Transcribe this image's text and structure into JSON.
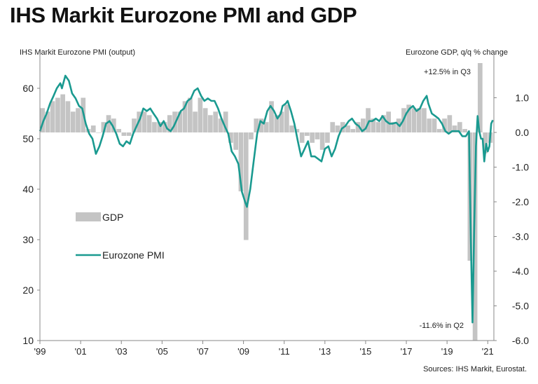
{
  "page": {
    "title": "IHS Markit Eurozone PMI and GDP",
    "source": "Sources: IHS Markit, Eurostat."
  },
  "chart_data": {
    "type": "bar+line",
    "title": "IHS Markit Eurozone PMI and GDP",
    "left_axis_label": "IHS Markit Eurozone PMI (output)",
    "right_axis_label": "Eurozone GDP, q/q % change",
    "left_ylim": [
      10,
      65
    ],
    "left_ticks": [
      "10",
      "20",
      "30",
      "40",
      "50",
      "60"
    ],
    "right_ylim": [
      -6.0,
      2.0
    ],
    "right_ticks": [
      "-6.0",
      "-5.0",
      "-4.0",
      "-3.0",
      "-2.0",
      "-1.0",
      "0.0",
      "1.0"
    ],
    "x_range": [
      1999.0,
      2021.3
    ],
    "x_ticks": [
      "'99",
      "'01",
      "'03",
      "'05",
      "'07",
      "'09",
      "'11",
      "'13",
      "'15",
      "'17",
      "'19",
      "'21"
    ],
    "grid": false,
    "legend_position": "left-middle",
    "colors": {
      "gdp": "#c4c4c4",
      "pmi": "#1a9a90",
      "axis": "#888888",
      "text": "#222222"
    },
    "annotations": {
      "q3_2020": "+12.5% in Q3",
      "q2_2020": "-11.6% in Q2"
    },
    "series": [
      {
        "name": "GDP",
        "type": "bar",
        "axis": "right",
        "values": [
          [
            1999.0,
            0.7
          ],
          [
            1999.25,
            0.6
          ],
          [
            1999.5,
            0.9
          ],
          [
            1999.75,
            1.0
          ],
          [
            2000.0,
            1.1
          ],
          [
            2000.25,
            0.9
          ],
          [
            2000.5,
            0.6
          ],
          [
            2000.75,
            0.7
          ],
          [
            2001.0,
            1.0
          ],
          [
            2001.25,
            0.1
          ],
          [
            2001.5,
            0.2
          ],
          [
            2001.75,
            0.0
          ],
          [
            2002.0,
            0.3
          ],
          [
            2002.25,
            0.5
          ],
          [
            2002.5,
            0.4
          ],
          [
            2002.75,
            0.1
          ],
          [
            2003.0,
            -0.1
          ],
          [
            2003.25,
            -0.1
          ],
          [
            2003.5,
            0.4
          ],
          [
            2003.75,
            0.6
          ],
          [
            2004.0,
            0.6
          ],
          [
            2004.25,
            0.5
          ],
          [
            2004.5,
            0.3
          ],
          [
            2004.75,
            0.3
          ],
          [
            2005.0,
            0.3
          ],
          [
            2005.25,
            0.5
          ],
          [
            2005.5,
            0.6
          ],
          [
            2005.75,
            0.6
          ],
          [
            2006.0,
            0.9
          ],
          [
            2006.25,
            1.0
          ],
          [
            2006.5,
            0.6
          ],
          [
            2006.75,
            1.0
          ],
          [
            2007.0,
            0.7
          ],
          [
            2007.25,
            0.5
          ],
          [
            2007.5,
            0.6
          ],
          [
            2007.75,
            0.4
          ],
          [
            2008.0,
            0.6
          ],
          [
            2008.25,
            -0.3
          ],
          [
            2008.5,
            -0.5
          ],
          [
            2008.75,
            -1.7
          ],
          [
            2009.0,
            -3.1
          ],
          [
            2009.25,
            -0.2
          ],
          [
            2009.5,
            0.4
          ],
          [
            2009.75,
            0.4
          ],
          [
            2010.0,
            0.3
          ],
          [
            2010.25,
            0.9
          ],
          [
            2010.5,
            0.5
          ],
          [
            2010.75,
            0.6
          ],
          [
            2011.0,
            0.8
          ],
          [
            2011.25,
            0.2
          ],
          [
            2011.5,
            0.1
          ],
          [
            2011.75,
            -0.3
          ],
          [
            2012.0,
            -0.1
          ],
          [
            2012.25,
            -0.3
          ],
          [
            2012.5,
            -0.2
          ],
          [
            2012.75,
            -0.5
          ],
          [
            2013.0,
            -0.3
          ],
          [
            2013.25,
            0.3
          ],
          [
            2013.5,
            0.2
          ],
          [
            2013.75,
            0.3
          ],
          [
            2014.0,
            0.2
          ],
          [
            2014.25,
            0.1
          ],
          [
            2014.5,
            0.3
          ],
          [
            2014.75,
            0.4
          ],
          [
            2015.0,
            0.7
          ],
          [
            2015.25,
            0.4
          ],
          [
            2015.5,
            0.3
          ],
          [
            2015.75,
            0.5
          ],
          [
            2016.0,
            0.6
          ],
          [
            2016.25,
            0.3
          ],
          [
            2016.5,
            0.4
          ],
          [
            2016.75,
            0.7
          ],
          [
            2017.0,
            0.8
          ],
          [
            2017.25,
            0.7
          ],
          [
            2017.5,
            0.7
          ],
          [
            2017.75,
            0.7
          ],
          [
            2018.0,
            0.4
          ],
          [
            2018.25,
            0.4
          ],
          [
            2018.5,
            0.1
          ],
          [
            2018.75,
            0.4
          ],
          [
            2019.0,
            0.5
          ],
          [
            2019.25,
            0.2
          ],
          [
            2019.5,
            0.3
          ],
          [
            2019.75,
            0.1
          ],
          [
            2020.0,
            -3.7
          ],
          [
            2020.25,
            -11.6
          ],
          [
            2020.5,
            12.5
          ],
          [
            2020.75,
            -0.6
          ],
          [
            2021.0,
            -0.3
          ]
        ]
      },
      {
        "name": "Eurozone PMI",
        "type": "line",
        "axis": "left",
        "values": [
          [
            1999.0,
            51.5
          ],
          [
            1999.17,
            53.5
          ],
          [
            1999.33,
            55.0
          ],
          [
            1999.5,
            57.0
          ],
          [
            1999.67,
            58.5
          ],
          [
            1999.83,
            60.0
          ],
          [
            2000.0,
            61.0
          ],
          [
            2000.08,
            60.0
          ],
          [
            2000.25,
            62.5
          ],
          [
            2000.42,
            61.5
          ],
          [
            2000.58,
            59.0
          ],
          [
            2000.75,
            58.0
          ],
          [
            2000.92,
            56.5
          ],
          [
            2001.08,
            56.0
          ],
          [
            2001.25,
            53.0
          ],
          [
            2001.42,
            51.0
          ],
          [
            2001.58,
            50.0
          ],
          [
            2001.75,
            47.0
          ],
          [
            2001.92,
            48.5
          ],
          [
            2002.08,
            50.5
          ],
          [
            2002.25,
            53.0
          ],
          [
            2002.42,
            53.5
          ],
          [
            2002.58,
            52.5
          ],
          [
            2002.75,
            51.0
          ],
          [
            2002.92,
            49.0
          ],
          [
            2003.08,
            48.5
          ],
          [
            2003.25,
            49.5
          ],
          [
            2003.42,
            49.0
          ],
          [
            2003.58,
            51.0
          ],
          [
            2003.75,
            52.5
          ],
          [
            2003.92,
            54.0
          ],
          [
            2004.08,
            56.0
          ],
          [
            2004.25,
            55.5
          ],
          [
            2004.42,
            56.0
          ],
          [
            2004.58,
            55.0
          ],
          [
            2004.75,
            54.0
          ],
          [
            2004.92,
            52.5
          ],
          [
            2005.08,
            53.5
          ],
          [
            2005.25,
            52.0
          ],
          [
            2005.42,
            51.5
          ],
          [
            2005.58,
            52.5
          ],
          [
            2005.75,
            54.0
          ],
          [
            2005.92,
            55.5
          ],
          [
            2006.08,
            56.0
          ],
          [
            2006.25,
            57.5
          ],
          [
            2006.42,
            58.0
          ],
          [
            2006.58,
            59.5
          ],
          [
            2006.75,
            60.0
          ],
          [
            2006.92,
            58.5
          ],
          [
            2007.08,
            57.5
          ],
          [
            2007.25,
            58.0
          ],
          [
            2007.42,
            57.5
          ],
          [
            2007.58,
            57.5
          ],
          [
            2007.75,
            56.0
          ],
          [
            2007.92,
            54.0
          ],
          [
            2008.08,
            52.5
          ],
          [
            2008.25,
            51.0
          ],
          [
            2008.42,
            47.5
          ],
          [
            2008.58,
            46.5
          ],
          [
            2008.75,
            45.0
          ],
          [
            2008.92,
            39.5
          ],
          [
            2009.08,
            37.5
          ],
          [
            2009.17,
            36.5
          ],
          [
            2009.33,
            40.0
          ],
          [
            2009.5,
            45.5
          ],
          [
            2009.67,
            51.0
          ],
          [
            2009.83,
            53.5
          ],
          [
            2010.0,
            53.0
          ],
          [
            2010.17,
            55.5
          ],
          [
            2010.33,
            56.5
          ],
          [
            2010.5,
            55.5
          ],
          [
            2010.67,
            54.0
          ],
          [
            2010.83,
            55.0
          ],
          [
            2010.92,
            56.5
          ],
          [
            2011.08,
            57.0
          ],
          [
            2011.17,
            57.5
          ],
          [
            2011.33,
            55.5
          ],
          [
            2011.5,
            53.0
          ],
          [
            2011.67,
            49.5
          ],
          [
            2011.83,
            46.5
          ],
          [
            2012.0,
            48.0
          ],
          [
            2012.17,
            49.5
          ],
          [
            2012.33,
            46.5
          ],
          [
            2012.5,
            46.5
          ],
          [
            2012.67,
            46.0
          ],
          [
            2012.83,
            45.5
          ],
          [
            2013.0,
            48.0
          ],
          [
            2013.17,
            48.5
          ],
          [
            2013.33,
            46.5
          ],
          [
            2013.5,
            48.0
          ],
          [
            2013.67,
            50.5
          ],
          [
            2013.83,
            52.0
          ],
          [
            2014.0,
            52.5
          ],
          [
            2014.17,
            53.5
          ],
          [
            2014.33,
            54.0
          ],
          [
            2014.5,
            53.0
          ],
          [
            2014.67,
            52.5
          ],
          [
            2014.83,
            51.5
          ],
          [
            2015.0,
            52.0
          ],
          [
            2015.17,
            53.5
          ],
          [
            2015.33,
            53.5
          ],
          [
            2015.5,
            54.0
          ],
          [
            2015.67,
            53.5
          ],
          [
            2015.83,
            54.5
          ],
          [
            2016.0,
            53.5
          ],
          [
            2016.17,
            53.0
          ],
          [
            2016.33,
            53.0
          ],
          [
            2016.5,
            53.2
          ],
          [
            2016.67,
            52.5
          ],
          [
            2016.83,
            53.5
          ],
          [
            2017.0,
            55.0
          ],
          [
            2017.17,
            56.0
          ],
          [
            2017.33,
            56.5
          ],
          [
            2017.5,
            55.5
          ],
          [
            2017.67,
            56.0
          ],
          [
            2017.83,
            57.5
          ],
          [
            2018.0,
            58.5
          ],
          [
            2018.08,
            57.0
          ],
          [
            2018.25,
            55.0
          ],
          [
            2018.42,
            54.5
          ],
          [
            2018.58,
            54.0
          ],
          [
            2018.75,
            53.0
          ],
          [
            2018.92,
            51.5
          ],
          [
            2019.08,
            51.0
          ],
          [
            2019.25,
            51.5
          ],
          [
            2019.42,
            51.5
          ],
          [
            2019.58,
            51.5
          ],
          [
            2019.75,
            50.5
          ],
          [
            2019.92,
            50.5
          ],
          [
            2020.0,
            51.0
          ],
          [
            2020.08,
            51.5
          ],
          [
            2020.17,
            29.5
          ],
          [
            2020.25,
            13.6
          ],
          [
            2020.33,
            31.5
          ],
          [
            2020.42,
            48.5
          ],
          [
            2020.5,
            54.5
          ],
          [
            2020.58,
            51.5
          ],
          [
            2020.67,
            50.0
          ],
          [
            2020.75,
            50.0
          ],
          [
            2020.83,
            45.5
          ],
          [
            2020.92,
            49.0
          ],
          [
            2021.0,
            47.5
          ],
          [
            2021.08,
            48.5
          ],
          [
            2021.17,
            53.0
          ],
          [
            2021.25,
            53.7
          ]
        ]
      }
    ]
  }
}
